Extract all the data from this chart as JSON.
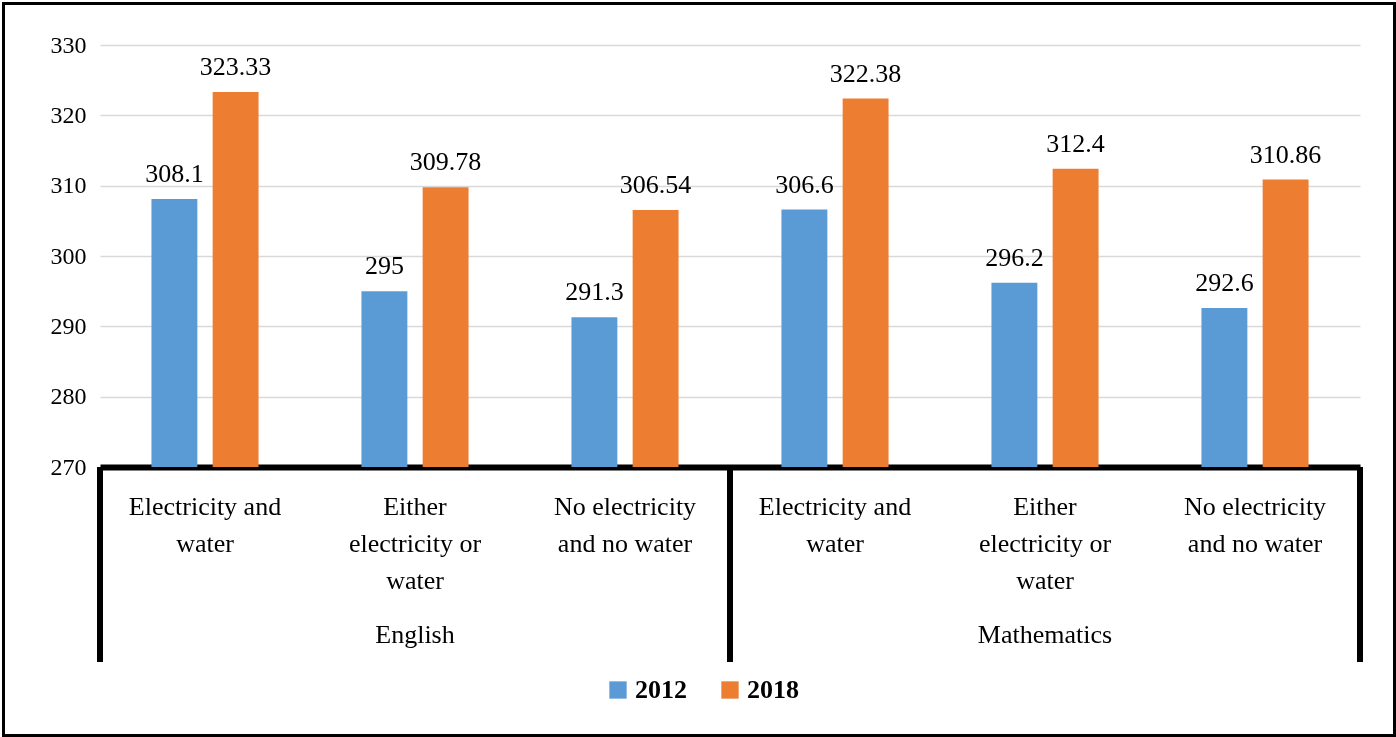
{
  "chart_data": {
    "type": "bar",
    "categories": [
      "Electricity and water",
      "Either electricity or water",
      "No electricity and no water",
      "Electricity and water",
      "Either electricity or water",
      "No electricity and no water"
    ],
    "annotations": [
      "English",
      "Mathematics"
    ],
    "series": [
      {
        "name": "2012",
        "color": "#5b9bd5",
        "values": [
          308.1,
          295,
          291.3,
          306.6,
          296.2,
          292.6
        ]
      },
      {
        "name": "2018",
        "color": "#ed7d31",
        "values": [
          323.33,
          309.78,
          306.54,
          322.38,
          312.4,
          310.86
        ]
      }
    ],
    "ylim": [
      270,
      330
    ],
    "yticks": [
      270,
      280,
      290,
      300,
      310,
      320,
      330
    ],
    "grid": "y",
    "legend": "bottom",
    "data_labels": true
  }
}
